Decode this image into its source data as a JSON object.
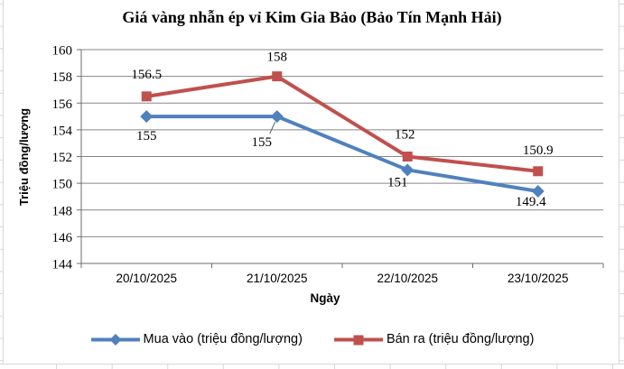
{
  "chart_data": {
    "type": "line",
    "title": "Giá vàng nhẫn ép vỉ Kim Gia Bảo (Bảo Tín Mạnh Hải)",
    "xlabel": "Ngày",
    "ylabel": "Triệu đồng/lượng",
    "categories": [
      "20/10/2025",
      "21/10/2025",
      "22/10/2025",
      "23/10/2025"
    ],
    "series": [
      {
        "name": "Mua vào (triệu đồng/lượng)",
        "values": [
          155,
          155,
          151,
          149.4
        ],
        "color": "#4F81BD",
        "marker": "diamond",
        "labels_position": "below"
      },
      {
        "name": "Bán ra (triệu đồng/lượng)",
        "values": [
          156.5,
          158,
          152,
          150.9
        ],
        "color": "#C0504D",
        "marker": "square",
        "labels_position": "above"
      }
    ],
    "ylim": [
      144,
      160
    ],
    "ytick_step": 2,
    "yticks": [
      144,
      146,
      148,
      150,
      152,
      154,
      156,
      158,
      160
    ],
    "grid": "horizontal",
    "grid_color": "#878787",
    "axis_color": "#6e6e6e",
    "label_color": "#000000",
    "background_grid_color": "#d7d7d7",
    "legend_position": "bottom"
  }
}
